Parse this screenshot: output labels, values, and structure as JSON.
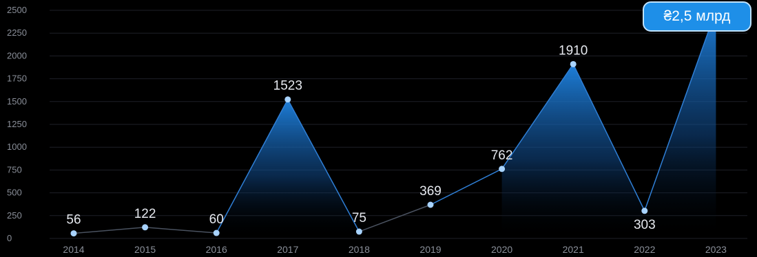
{
  "chart_data": {
    "type": "area",
    "categories": [
      "2014",
      "2015",
      "2016",
      "2017",
      "2018",
      "2019",
      "2020",
      "2021",
      "2022",
      "2023"
    ],
    "values": [
      56,
      122,
      60,
      1523,
      75,
      369,
      762,
      1910,
      303,
      2500
    ],
    "data_labels": [
      "56",
      "122",
      "60",
      "1523",
      "75",
      "369",
      "762",
      "1910",
      "303",
      ""
    ],
    "yticks": [
      "0",
      "250",
      "500",
      "750",
      "1000",
      "1250",
      "1500",
      "1750",
      "2000",
      "2250",
      "2500"
    ],
    "ylim": [
      0,
      2500
    ],
    "grid": true,
    "highlight_label": "₴2,5 млрд",
    "colors": {
      "line": "#2f7fd6",
      "fill": "#1f86e6",
      "point": "#a8d3ff",
      "grid": "#1e2128"
    }
  }
}
